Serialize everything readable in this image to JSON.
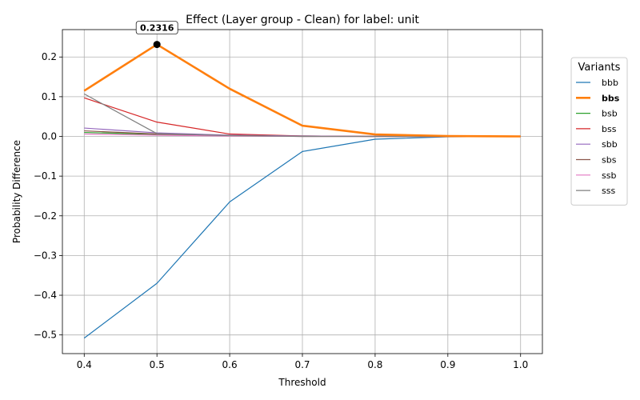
{
  "chart_data": {
    "type": "line",
    "title": "Effect (Layer group - Clean) for label: unit",
    "xlabel": "Threshold",
    "ylabel": "Probability Difference",
    "x": [
      0.4,
      0.5,
      0.6,
      0.7,
      0.8,
      0.9,
      1.0
    ],
    "x_ticks": [
      "0.4",
      "0.5",
      "0.6",
      "0.7",
      "0.8",
      "0.9",
      "1.0"
    ],
    "y_ticks": [
      "−0.5",
      "−0.4",
      "−0.3",
      "−0.2",
      "−0.1",
      "0.0",
      "0.1",
      "0.2"
    ],
    "xlim": [
      0.37,
      1.03
    ],
    "ylim": [
      -0.547,
      0.269
    ],
    "grid": true,
    "legend": {
      "title": "Variants",
      "placement": "outside-right"
    },
    "series": [
      {
        "name": "bbb",
        "color": "#1f77b4",
        "highlight": false,
        "values": [
          -0.508,
          -0.37,
          -0.165,
          -0.038,
          -0.007,
          -0.001,
          0.0
        ]
      },
      {
        "name": "bbs",
        "color": "#ff7f0e",
        "highlight": true,
        "values": [
          0.115,
          0.2316,
          0.12,
          0.027,
          0.005,
          0.001,
          0.0
        ]
      },
      {
        "name": "bsb",
        "color": "#2ca02c",
        "highlight": false,
        "values": [
          0.01,
          0.005,
          0.002,
          0.001,
          0.0,
          0.0,
          0.0
        ]
      },
      {
        "name": "bss",
        "color": "#d62728",
        "highlight": false,
        "values": [
          0.097,
          0.036,
          0.006,
          0.001,
          0.0,
          0.0,
          0.0
        ]
      },
      {
        "name": "sbb",
        "color": "#9467bd",
        "highlight": false,
        "values": [
          0.021,
          0.009,
          0.003,
          0.001,
          0.0,
          0.0,
          0.0
        ]
      },
      {
        "name": "sbs",
        "color": "#8c564b",
        "highlight": false,
        "values": [
          0.014,
          0.006,
          0.002,
          0.0,
          0.0,
          0.0,
          0.0
        ]
      },
      {
        "name": "ssb",
        "color": "#e377c2",
        "highlight": false,
        "values": [
          0.006,
          0.003,
          0.001,
          0.0,
          0.0,
          0.0,
          0.0
        ]
      },
      {
        "name": "sss",
        "color": "#7f7f7f",
        "highlight": false,
        "values": [
          0.107,
          0.007,
          0.002,
          0.0,
          0.0,
          0.0,
          0.0
        ]
      }
    ],
    "annotation": {
      "text": "0.2316",
      "x": 0.5,
      "y": 0.2316,
      "series": "bbs"
    }
  }
}
